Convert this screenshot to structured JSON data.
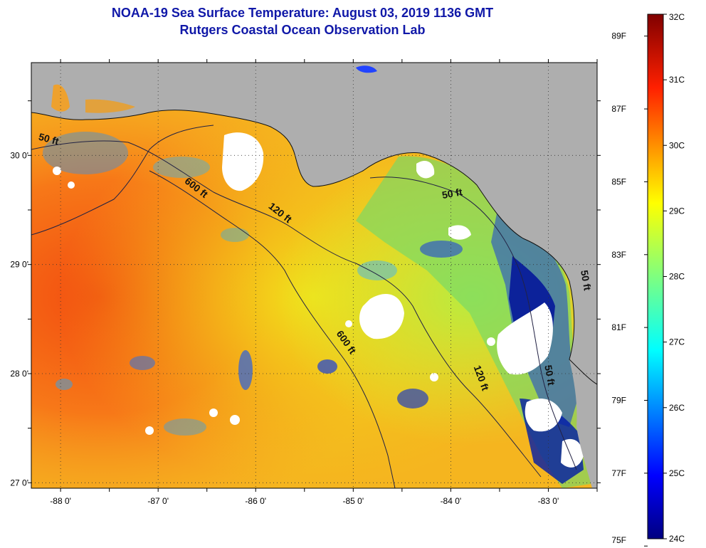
{
  "title": {
    "line1": "NOAA-19 Sea Surface Temperature:  August 03, 2019 1136 GMT",
    "line2": "Rutgers Coastal Ocean Observation Lab"
  },
  "map": {
    "lon_range": [
      -88.3,
      -82.5
    ],
    "lat_range": [
      26.95,
      30.85
    ],
    "lat_ticks": [
      {
        "value": 27.0,
        "label": "27 0'"
      },
      {
        "value": 28.0,
        "label": "28 0'"
      },
      {
        "value": 29.0,
        "label": "29 0'"
      },
      {
        "value": 30.0,
        "label": "30 0'"
      }
    ],
    "lon_ticks": [
      {
        "value": -88.0,
        "label": "-88 0'"
      },
      {
        "value": -87.0,
        "label": "-87 0'"
      },
      {
        "value": -86.0,
        "label": "-86 0'"
      },
      {
        "value": -85.0,
        "label": "-85 0'"
      },
      {
        "value": -84.0,
        "label": "-84 0'"
      },
      {
        "value": -83.0,
        "label": "-83 0'"
      }
    ],
    "contours": [
      {
        "label": "50 ft",
        "lon": -88.13,
        "lat": 30.12,
        "rotate": 15
      },
      {
        "label": "600 ft",
        "lon": -86.63,
        "lat": 29.68,
        "rotate": 38
      },
      {
        "label": "120 ft",
        "lon": -85.77,
        "lat": 29.45,
        "rotate": 38
      },
      {
        "label": "50 ft",
        "lon": -83.98,
        "lat": 29.62,
        "rotate": -10
      },
      {
        "label": "600 ft",
        "lon": -85.1,
        "lat": 28.27,
        "rotate": 55
      },
      {
        "label": "120 ft",
        "lon": -83.72,
        "lat": 27.95,
        "rotate": 70
      },
      {
        "label": "50 ft",
        "lon": -83.02,
        "lat": 27.98,
        "rotate": 80
      },
      {
        "label": "50 ft",
        "lon": -82.65,
        "lat": 28.85,
        "rotate": 80
      }
    ],
    "colors": {
      "land": "#aeaeae",
      "cloud": "#ffffff",
      "contour": "#222244"
    }
  },
  "colorbar": {
    "c_range": [
      24,
      32
    ],
    "celsius": [
      {
        "value": 32,
        "label": "32C"
      },
      {
        "value": 31,
        "label": "31C"
      },
      {
        "value": 30,
        "label": "30C"
      },
      {
        "value": 29,
        "label": "29C"
      },
      {
        "value": 28,
        "label": "28C"
      },
      {
        "value": 27,
        "label": "27C"
      },
      {
        "value": 26,
        "label": "26C"
      },
      {
        "value": 25,
        "label": "25C"
      },
      {
        "value": 24,
        "label": "24C"
      }
    ],
    "fahrenheit": [
      {
        "value": 89,
        "label": "89F"
      },
      {
        "value": 87,
        "label": "87F"
      },
      {
        "value": 85,
        "label": "85F"
      },
      {
        "value": 83,
        "label": "83F"
      },
      {
        "value": 81,
        "label": "81F"
      },
      {
        "value": 79,
        "label": "79F"
      },
      {
        "value": 77,
        "label": "77F"
      },
      {
        "value": 75,
        "label": "75F"
      }
    ]
  }
}
